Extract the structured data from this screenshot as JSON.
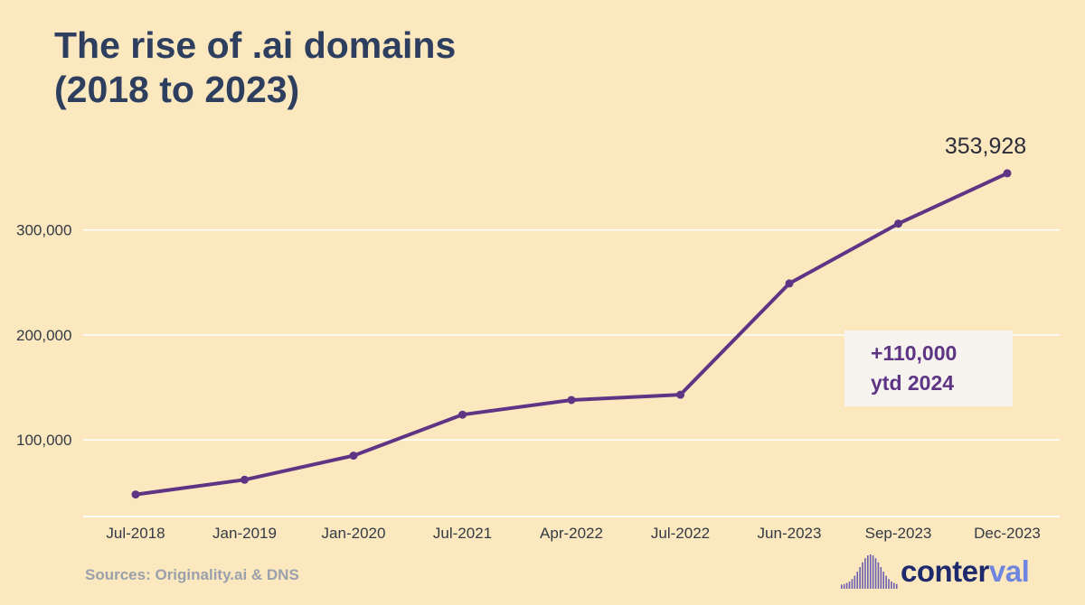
{
  "title": {
    "line1": "The rise of .ai domains",
    "line2": "(2018 to 2023)"
  },
  "source": "Sources: Originality.ai & DNS",
  "logo": {
    "text_main": "conter",
    "text_accent": "val"
  },
  "colors": {
    "background": "#fce8be",
    "line": "#5e3585",
    "title": "#2d3e5f",
    "annotation_box": "#f7f3ef"
  },
  "chart_data": {
    "type": "line",
    "categories": [
      "Jul-2018",
      "Jan-2019",
      "Jan-2020",
      "Jul-2021",
      "Apr-2022",
      "Jul-2022",
      "Jun-2023",
      "Sep-2023",
      "Dec-2023"
    ],
    "series": [
      {
        "values": [
          48000,
          62000,
          85000,
          124000,
          138000,
          143000,
          249000,
          306000,
          353928
        ]
      }
    ],
    "yticks": [
      100000,
      200000,
      300000
    ],
    "ytick_labels": [
      "100,000",
      "200,000",
      "300,000"
    ],
    "ylim": [
      27000,
      390000
    ],
    "grid": true,
    "end_label": "353,928",
    "annotation": {
      "line1": "+110,000",
      "line2": "ytd 2024"
    }
  }
}
